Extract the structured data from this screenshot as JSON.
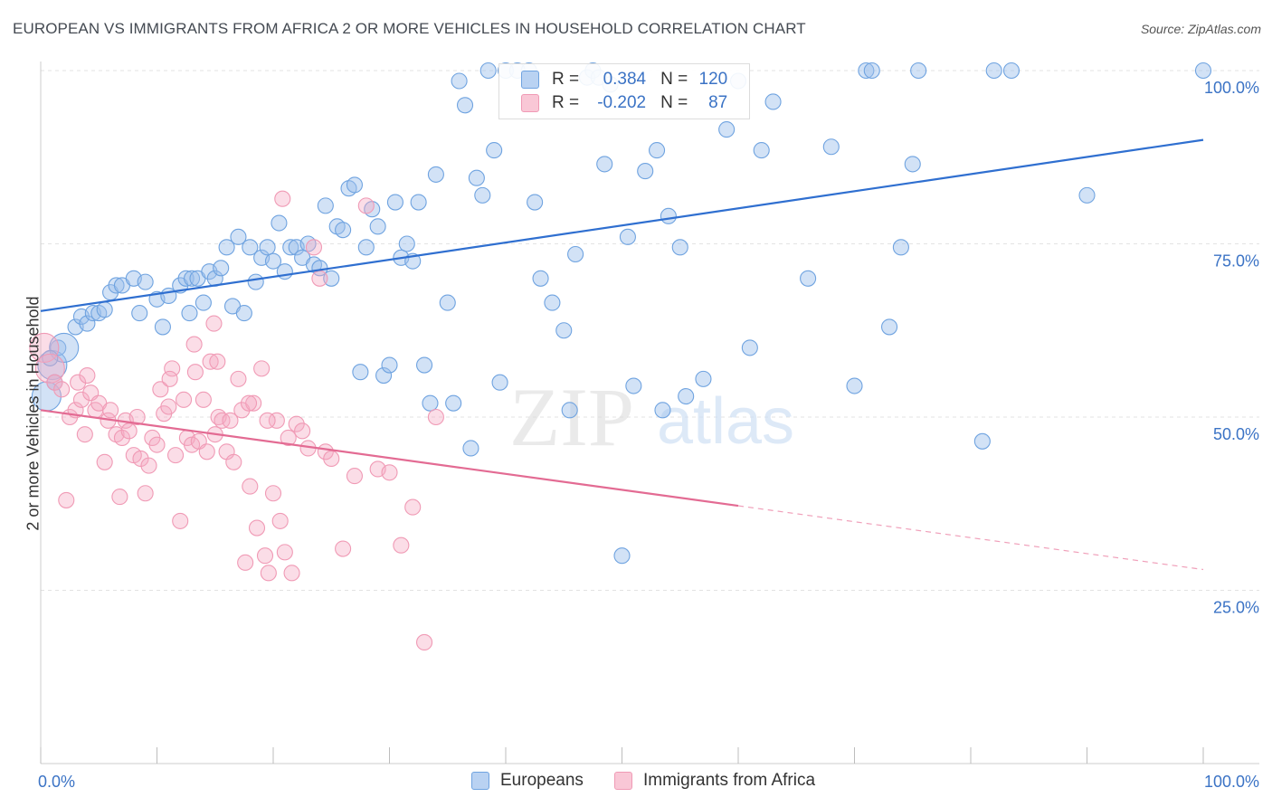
{
  "title": "EUROPEAN VS IMMIGRANTS FROM AFRICA 2 OR MORE VEHICLES IN HOUSEHOLD CORRELATION CHART",
  "source": "Source: ZipAtlas.com",
  "watermark": {
    "zip": "ZIP",
    "atlas": "atlas"
  },
  "legend": {
    "r_label": "R =",
    "n_label": "N =",
    "rows": [
      {
        "r": "0.384",
        "n": "120",
        "color": "#6fa3e0"
      },
      {
        "r": "-0.202",
        "n": "87",
        "color": "#f09ab5"
      }
    ]
  },
  "chart_data": {
    "type": "scatter",
    "title": "EUROPEAN VS IMMIGRANTS FROM AFRICA 2 OR MORE VEHICLES IN HOUSEHOLD CORRELATION CHART",
    "xlabel": "",
    "ylabel": "2 or more Vehicles in Household",
    "xlim": [
      0,
      100
    ],
    "ylim": [
      0,
      100
    ],
    "x_tick_labels": [
      "0.0%",
      "100.0%"
    ],
    "y_ticks": [
      25,
      50,
      75,
      100
    ],
    "y_tick_labels": [
      "25.0%",
      "50.0%",
      "75.0%",
      "100.0%"
    ],
    "grid": true,
    "legend_position": "top-center",
    "series": [
      {
        "name": "Europeans",
        "color": "#6fa3e0",
        "trend": {
          "x": [
            0,
            100
          ],
          "y": [
            65.3,
            90.0
          ]
        },
        "points": [
          [
            0.5,
            53
          ],
          [
            1,
            57.5
          ],
          [
            1.5,
            60
          ],
          [
            2,
            60
          ],
          [
            3,
            63
          ],
          [
            3.5,
            64.5
          ],
          [
            4,
            63.5
          ],
          [
            4.5,
            65
          ],
          [
            5,
            65
          ],
          [
            5.5,
            65.5
          ],
          [
            6,
            68
          ],
          [
            6.5,
            69
          ],
          [
            7,
            69
          ],
          [
            8,
            70
          ],
          [
            8.5,
            65
          ],
          [
            9,
            69.5
          ],
          [
            10,
            67
          ],
          [
            10.5,
            63
          ],
          [
            11,
            67.5
          ],
          [
            12,
            69
          ],
          [
            12.5,
            70
          ],
          [
            12.8,
            65
          ],
          [
            13,
            70
          ],
          [
            13.5,
            70
          ],
          [
            14,
            66.5
          ],
          [
            14.5,
            71
          ],
          [
            15,
            70
          ],
          [
            15.5,
            71.5
          ],
          [
            16,
            74.5
          ],
          [
            16.5,
            66
          ],
          [
            17,
            76
          ],
          [
            17.5,
            65
          ],
          [
            18,
            74.5
          ],
          [
            18.5,
            69.5
          ],
          [
            19,
            73
          ],
          [
            19.5,
            74.5
          ],
          [
            20,
            72.5
          ],
          [
            20.5,
            78
          ],
          [
            21,
            71
          ],
          [
            21.5,
            74.5
          ],
          [
            22,
            74.5
          ],
          [
            22.5,
            73
          ],
          [
            23,
            75
          ],
          [
            23.5,
            72
          ],
          [
            24,
            71.5
          ],
          [
            24.5,
            80.5
          ],
          [
            25,
            70
          ],
          [
            25.5,
            77.5
          ],
          [
            26,
            77
          ],
          [
            26.5,
            83
          ],
          [
            27,
            83.5
          ],
          [
            27.5,
            56.5
          ],
          [
            28,
            74.5
          ],
          [
            28.5,
            80
          ],
          [
            29,
            77.5
          ],
          [
            29.5,
            56
          ],
          [
            30,
            57.5
          ],
          [
            30.5,
            81
          ],
          [
            31,
            73
          ],
          [
            31.5,
            75
          ],
          [
            32,
            72.5
          ],
          [
            32.5,
            81
          ],
          [
            33,
            57.5
          ],
          [
            33.5,
            52
          ],
          [
            34,
            85
          ],
          [
            35,
            66.5
          ],
          [
            35.5,
            52
          ],
          [
            36,
            98.5
          ],
          [
            36.5,
            95
          ],
          [
            37,
            45.5
          ],
          [
            37.5,
            84.5
          ],
          [
            38,
            82
          ],
          [
            38.5,
            100
          ],
          [
            39,
            88.5
          ],
          [
            39.5,
            55
          ],
          [
            40,
            100
          ],
          [
            41,
            100
          ],
          [
            42,
            100
          ],
          [
            42.5,
            81
          ],
          [
            43,
            70
          ],
          [
            44,
            66.5
          ],
          [
            45,
            62.5
          ],
          [
            45.5,
            51
          ],
          [
            46,
            73.5
          ],
          [
            47,
            99
          ],
          [
            47.5,
            100
          ],
          [
            48,
            99
          ],
          [
            48.5,
            86.5
          ],
          [
            49,
            98
          ],
          [
            50,
            30
          ],
          [
            50.5,
            76
          ],
          [
            51,
            54.5
          ],
          [
            52,
            85.5
          ],
          [
            53,
            88.5
          ],
          [
            53.5,
            51
          ],
          [
            54,
            79
          ],
          [
            55,
            74.5
          ],
          [
            55.5,
            53
          ],
          [
            57,
            55.5
          ],
          [
            59,
            91.5
          ],
          [
            60,
            98.5
          ],
          [
            61,
            60
          ],
          [
            62,
            88.5
          ],
          [
            63,
            95.5
          ],
          [
            66,
            70
          ],
          [
            68,
            89
          ],
          [
            70,
            54.5
          ],
          [
            71,
            100
          ],
          [
            71.5,
            100
          ],
          [
            73,
            63
          ],
          [
            74,
            74.5
          ],
          [
            75,
            86.5
          ],
          [
            75.5,
            100
          ],
          [
            81,
            46.5
          ],
          [
            82,
            100
          ],
          [
            83.5,
            100
          ],
          [
            90,
            82
          ],
          [
            100,
            100
          ],
          [
            0.8,
            58.5
          ],
          [
            1.2,
            55
          ]
        ],
        "sizes_large": [
          [
            0.5,
            53
          ],
          [
            1,
            57.5
          ],
          [
            2,
            60
          ]
        ]
      },
      {
        "name": "Immigrants from Africa",
        "color": "#f09ab5",
        "trend": {
          "x": [
            0,
            60
          ],
          "y": [
            51.0,
            37.2
          ],
          "dashed_to": {
            "x": 100,
            "y": 28.0
          }
        },
        "points": [
          [
            0.3,
            60
          ],
          [
            0.8,
            57
          ],
          [
            1.2,
            55
          ],
          [
            1.8,
            54
          ],
          [
            2.2,
            38
          ],
          [
            2.5,
            50
          ],
          [
            3,
            51
          ],
          [
            3.2,
            55
          ],
          [
            3.5,
            52.5
          ],
          [
            3.8,
            47.5
          ],
          [
            4,
            56
          ],
          [
            4.3,
            53.5
          ],
          [
            4.7,
            51
          ],
          [
            5,
            52
          ],
          [
            5.5,
            43.5
          ],
          [
            5.8,
            49.5
          ],
          [
            6,
            51
          ],
          [
            6.5,
            47.5
          ],
          [
            6.8,
            38.5
          ],
          [
            7,
            47
          ],
          [
            7.3,
            49.5
          ],
          [
            7.6,
            48
          ],
          [
            8,
            44.5
          ],
          [
            8.3,
            50
          ],
          [
            8.6,
            44
          ],
          [
            9,
            39
          ],
          [
            9.3,
            43
          ],
          [
            9.6,
            47
          ],
          [
            10,
            46
          ],
          [
            10.3,
            54
          ],
          [
            10.6,
            50.5
          ],
          [
            11,
            51.5
          ],
          [
            11.3,
            57
          ],
          [
            11.6,
            44.5
          ],
          [
            12,
            35
          ],
          [
            12.3,
            52.5
          ],
          [
            12.6,
            47
          ],
          [
            13,
            46
          ],
          [
            13.3,
            56.5
          ],
          [
            13.6,
            46.5
          ],
          [
            14,
            52.5
          ],
          [
            14.3,
            45
          ],
          [
            14.6,
            58
          ],
          [
            15,
            47.5
          ],
          [
            15.3,
            50
          ],
          [
            15.6,
            49.5
          ],
          [
            16,
            45
          ],
          [
            16.3,
            49.5
          ],
          [
            16.6,
            43.5
          ],
          [
            17,
            55.5
          ],
          [
            17.3,
            51
          ],
          [
            17.6,
            29
          ],
          [
            18,
            40
          ],
          [
            18.3,
            52
          ],
          [
            18.6,
            34
          ],
          [
            19,
            57
          ],
          [
            19.3,
            30
          ],
          [
            19.6,
            27.5
          ],
          [
            20,
            39
          ],
          [
            20.3,
            49.5
          ],
          [
            20.6,
            35
          ],
          [
            21,
            30.5
          ],
          [
            21.3,
            47
          ],
          [
            21.6,
            27.5
          ],
          [
            22,
            49
          ],
          [
            22.5,
            48
          ],
          [
            23,
            45.5
          ],
          [
            23.5,
            74.5
          ],
          [
            24,
            70
          ],
          [
            24.5,
            45
          ],
          [
            25,
            44
          ],
          [
            26,
            31
          ],
          [
            27,
            41.5
          ],
          [
            28,
            80.5
          ],
          [
            29,
            42.5
          ],
          [
            30,
            42
          ],
          [
            31,
            31.5
          ],
          [
            32,
            37
          ],
          [
            33,
            17.5
          ],
          [
            34,
            50
          ],
          [
            14.9,
            63.5
          ],
          [
            13.2,
            60.5
          ],
          [
            15.2,
            58
          ],
          [
            19.5,
            49.5
          ],
          [
            11.1,
            55.5
          ],
          [
            17.9,
            52
          ],
          [
            20.8,
            81.5
          ]
        ],
        "sizes_large": [
          [
            0.3,
            60
          ],
          [
            0.8,
            57
          ]
        ]
      }
    ]
  },
  "bottom_legend": [
    {
      "label": "Europeans",
      "color": "#6fa3e0"
    },
    {
      "label": "Immigrants from Africa",
      "color": "#f09ab5"
    }
  ]
}
